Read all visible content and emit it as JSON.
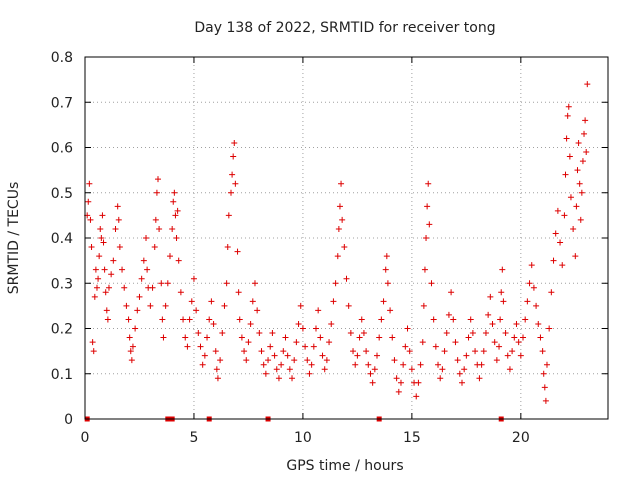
{
  "chart_data": {
    "type": "scatter",
    "title": "Day 138 of 2022, SRMTID for receiver tong",
    "xlabel": "GPS time / hours",
    "ylabel": "SRMTID / TECUs",
    "xlim": [
      0,
      24
    ],
    "ylim": [
      0,
      0.8
    ],
    "xticks": [
      0,
      5,
      10,
      15,
      20
    ],
    "yticks": [
      0,
      0.1,
      0.2,
      0.3,
      0.4,
      0.5,
      0.6,
      0.7,
      0.8
    ],
    "xtick_labels": [
      "0",
      "5",
      "10",
      "15",
      "20"
    ],
    "ytick_labels": [
      "0",
      "0.1",
      "0.2",
      "0.3",
      "0.4",
      "0.5",
      "0.6",
      "0.7",
      "0.8"
    ],
    "grid": true,
    "marker": "+",
    "color": "#dd0000",
    "series": [
      {
        "name": "SRMTID",
        "points": [
          [
            0.1,
            0.45
          ],
          [
            0.15,
            0.48
          ],
          [
            0.2,
            0.52
          ],
          [
            0.25,
            0.44
          ],
          [
            0.3,
            0.38
          ],
          [
            0.35,
            0.17
          ],
          [
            0.4,
            0.15
          ],
          [
            0.45,
            0.27
          ],
          [
            0.5,
            0.33
          ],
          [
            0.55,
            0.29
          ],
          [
            0.6,
            0.31
          ],
          [
            0.65,
            0.36
          ],
          [
            0.7,
            0.42
          ],
          [
            0.75,
            0.4
          ],
          [
            0.8,
            0.45
          ],
          [
            0.85,
            0.39
          ],
          [
            0.9,
            0.33
          ],
          [
            0.95,
            0.28
          ],
          [
            1.0,
            0.24
          ],
          [
            1.05,
            0.22
          ],
          [
            1.1,
            0.29
          ],
          [
            1.2,
            0.32
          ],
          [
            1.3,
            0.35
          ],
          [
            1.4,
            0.42
          ],
          [
            1.5,
            0.47
          ],
          [
            1.55,
            0.44
          ],
          [
            1.6,
            0.38
          ],
          [
            1.7,
            0.33
          ],
          [
            1.8,
            0.29
          ],
          [
            1.9,
            0.25
          ],
          [
            2.0,
            0.22
          ],
          [
            2.05,
            0.18
          ],
          [
            2.1,
            0.15
          ],
          [
            2.15,
            0.13
          ],
          [
            2.2,
            0.16
          ],
          [
            2.3,
            0.2
          ],
          [
            2.4,
            0.24
          ],
          [
            2.5,
            0.27
          ],
          [
            2.6,
            0.31
          ],
          [
            2.7,
            0.35
          ],
          [
            2.8,
            0.4
          ],
          [
            2.85,
            0.33
          ],
          [
            2.9,
            0.29
          ],
          [
            3.0,
            0.25
          ],
          [
            3.1,
            0.29
          ],
          [
            3.2,
            0.38
          ],
          [
            3.25,
            0.44
          ],
          [
            3.3,
            0.5
          ],
          [
            3.35,
            0.53
          ],
          [
            3.4,
            0.42
          ],
          [
            3.5,
            0.3
          ],
          [
            3.55,
            0.22
          ],
          [
            3.6,
            0.18
          ],
          [
            3.7,
            0.25
          ],
          [
            3.8,
            0.3
          ],
          [
            3.9,
            0.36
          ],
          [
            4.0,
            0.42
          ],
          [
            4.05,
            0.48
          ],
          [
            4.1,
            0.5
          ],
          [
            4.15,
            0.45
          ],
          [
            4.2,
            0.4
          ],
          [
            4.25,
            0.46
          ],
          [
            4.3,
            0.35
          ],
          [
            4.4,
            0.28
          ],
          [
            4.5,
            0.22
          ],
          [
            4.6,
            0.18
          ],
          [
            4.7,
            0.16
          ],
          [
            4.8,
            0.22
          ],
          [
            4.9,
            0.26
          ],
          [
            5.0,
            0.31
          ],
          [
            5.1,
            0.24
          ],
          [
            5.2,
            0.19
          ],
          [
            5.3,
            0.16
          ],
          [
            5.4,
            0.12
          ],
          [
            5.5,
            0.14
          ],
          [
            5.6,
            0.18
          ],
          [
            5.7,
            0.22
          ],
          [
            5.8,
            0.26
          ],
          [
            5.9,
            0.21
          ],
          [
            6.0,
            0.15
          ],
          [
            6.05,
            0.11
          ],
          [
            6.1,
            0.09
          ],
          [
            6.2,
            0.13
          ],
          [
            6.3,
            0.19
          ],
          [
            6.4,
            0.25
          ],
          [
            6.5,
            0.3
          ],
          [
            6.55,
            0.38
          ],
          [
            6.6,
            0.45
          ],
          [
            6.7,
            0.5
          ],
          [
            6.75,
            0.54
          ],
          [
            6.8,
            0.58
          ],
          [
            6.85,
            0.61
          ],
          [
            6.9,
            0.52
          ],
          [
            7.0,
            0.37
          ],
          [
            7.05,
            0.28
          ],
          [
            7.1,
            0.22
          ],
          [
            7.2,
            0.18
          ],
          [
            7.3,
            0.15
          ],
          [
            7.4,
            0.13
          ],
          [
            7.5,
            0.17
          ],
          [
            7.6,
            0.21
          ],
          [
            7.7,
            0.26
          ],
          [
            7.8,
            0.3
          ],
          [
            7.9,
            0.24
          ],
          [
            8.0,
            0.19
          ],
          [
            8.1,
            0.15
          ],
          [
            8.2,
            0.12
          ],
          [
            8.3,
            0.1
          ],
          [
            8.4,
            0.13
          ],
          [
            8.5,
            0.16
          ],
          [
            8.6,
            0.19
          ],
          [
            8.7,
            0.14
          ],
          [
            8.8,
            0.11
          ],
          [
            8.9,
            0.09
          ],
          [
            9.0,
            0.12
          ],
          [
            9.1,
            0.15
          ],
          [
            9.2,
            0.18
          ],
          [
            9.3,
            0.14
          ],
          [
            9.4,
            0.11
          ],
          [
            9.5,
            0.09
          ],
          [
            9.6,
            0.13
          ],
          [
            9.7,
            0.17
          ],
          [
            9.8,
            0.21
          ],
          [
            9.9,
            0.25
          ],
          [
            10.0,
            0.2
          ],
          [
            10.1,
            0.16
          ],
          [
            10.2,
            0.13
          ],
          [
            10.3,
            0.1
          ],
          [
            10.4,
            0.12
          ],
          [
            10.5,
            0.16
          ],
          [
            10.6,
            0.2
          ],
          [
            10.7,
            0.24
          ],
          [
            10.8,
            0.18
          ],
          [
            10.9,
            0.14
          ],
          [
            11.0,
            0.11
          ],
          [
            11.1,
            0.13
          ],
          [
            11.2,
            0.17
          ],
          [
            11.3,
            0.21
          ],
          [
            11.4,
            0.26
          ],
          [
            11.5,
            0.3
          ],
          [
            11.6,
            0.36
          ],
          [
            11.65,
            0.42
          ],
          [
            11.7,
            0.47
          ],
          [
            11.75,
            0.52
          ],
          [
            11.8,
            0.44
          ],
          [
            11.9,
            0.38
          ],
          [
            12.0,
            0.31
          ],
          [
            12.1,
            0.25
          ],
          [
            12.2,
            0.19
          ],
          [
            12.3,
            0.15
          ],
          [
            12.4,
            0.12
          ],
          [
            12.5,
            0.14
          ],
          [
            12.6,
            0.18
          ],
          [
            12.7,
            0.22
          ],
          [
            12.8,
            0.19
          ],
          [
            12.9,
            0.15
          ],
          [
            13.0,
            0.12
          ],
          [
            13.1,
            0.1
          ],
          [
            13.2,
            0.08
          ],
          [
            13.3,
            0.11
          ],
          [
            13.4,
            0.14
          ],
          [
            13.5,
            0.18
          ],
          [
            13.6,
            0.22
          ],
          [
            13.7,
            0.26
          ],
          [
            13.8,
            0.33
          ],
          [
            13.85,
            0.36
          ],
          [
            13.9,
            0.3
          ],
          [
            14.0,
            0.24
          ],
          [
            14.1,
            0.18
          ],
          [
            14.2,
            0.13
          ],
          [
            14.3,
            0.09
          ],
          [
            14.4,
            0.06
          ],
          [
            14.5,
            0.08
          ],
          [
            14.6,
            0.12
          ],
          [
            14.7,
            0.16
          ],
          [
            14.8,
            0.2
          ],
          [
            14.9,
            0.15
          ],
          [
            15.0,
            0.11
          ],
          [
            15.1,
            0.08
          ],
          [
            15.2,
            0.05
          ],
          [
            15.3,
            0.08
          ],
          [
            15.4,
            0.12
          ],
          [
            15.5,
            0.17
          ],
          [
            15.55,
            0.25
          ],
          [
            15.6,
            0.33
          ],
          [
            15.65,
            0.4
          ],
          [
            15.7,
            0.47
          ],
          [
            15.75,
            0.52
          ],
          [
            15.8,
            0.43
          ],
          [
            15.9,
            0.3
          ],
          [
            16.0,
            0.22
          ],
          [
            16.1,
            0.16
          ],
          [
            16.2,
            0.12
          ],
          [
            16.3,
            0.09
          ],
          [
            16.4,
            0.11
          ],
          [
            16.5,
            0.15
          ],
          [
            16.6,
            0.19
          ],
          [
            16.7,
            0.23
          ],
          [
            16.8,
            0.28
          ],
          [
            16.9,
            0.22
          ],
          [
            17.0,
            0.17
          ],
          [
            17.1,
            0.13
          ],
          [
            17.2,
            0.1
          ],
          [
            17.3,
            0.08
          ],
          [
            17.4,
            0.11
          ],
          [
            17.5,
            0.14
          ],
          [
            17.6,
            0.18
          ],
          [
            17.7,
            0.22
          ],
          [
            17.8,
            0.19
          ],
          [
            17.9,
            0.15
          ],
          [
            18.0,
            0.12
          ],
          [
            18.1,
            0.09
          ],
          [
            18.2,
            0.12
          ],
          [
            18.3,
            0.15
          ],
          [
            18.4,
            0.19
          ],
          [
            18.5,
            0.23
          ],
          [
            18.6,
            0.27
          ],
          [
            18.7,
            0.21
          ],
          [
            18.8,
            0.17
          ],
          [
            18.9,
            0.13
          ],
          [
            19.0,
            0.16
          ],
          [
            19.05,
            0.22
          ],
          [
            19.1,
            0.28
          ],
          [
            19.15,
            0.33
          ],
          [
            19.2,
            0.26
          ],
          [
            19.3,
            0.19
          ],
          [
            19.4,
            0.14
          ],
          [
            19.5,
            0.11
          ],
          [
            19.6,
            0.15
          ],
          [
            19.7,
            0.18
          ],
          [
            19.8,
            0.21
          ],
          [
            19.9,
            0.17
          ],
          [
            20.0,
            0.14
          ],
          [
            20.1,
            0.18
          ],
          [
            20.2,
            0.22
          ],
          [
            20.3,
            0.26
          ],
          [
            20.4,
            0.3
          ],
          [
            20.5,
            0.34
          ],
          [
            20.6,
            0.29
          ],
          [
            20.7,
            0.25
          ],
          [
            20.8,
            0.21
          ],
          [
            20.9,
            0.18
          ],
          [
            21.0,
            0.15
          ],
          [
            21.05,
            0.1
          ],
          [
            21.1,
            0.07
          ],
          [
            21.15,
            0.04
          ],
          [
            21.2,
            0.12
          ],
          [
            21.3,
            0.2
          ],
          [
            21.4,
            0.28
          ],
          [
            21.5,
            0.35
          ],
          [
            21.6,
            0.41
          ],
          [
            21.7,
            0.46
          ],
          [
            21.8,
            0.39
          ],
          [
            21.9,
            0.34
          ],
          [
            22.0,
            0.45
          ],
          [
            22.05,
            0.54
          ],
          [
            22.1,
            0.62
          ],
          [
            22.15,
            0.67
          ],
          [
            22.2,
            0.69
          ],
          [
            22.25,
            0.58
          ],
          [
            22.3,
            0.49
          ],
          [
            22.4,
            0.42
          ],
          [
            22.5,
            0.36
          ],
          [
            22.55,
            0.47
          ],
          [
            22.6,
            0.55
          ],
          [
            22.65,
            0.61
          ],
          [
            22.7,
            0.52
          ],
          [
            22.75,
            0.44
          ],
          [
            22.8,
            0.5
          ],
          [
            22.85,
            0.57
          ],
          [
            22.9,
            0.63
          ],
          [
            22.95,
            0.66
          ],
          [
            23.0,
            0.59
          ],
          [
            23.05,
            0.74
          ]
        ]
      }
    ],
    "x_markers": [
      0.1,
      3.8,
      4.0,
      5.7,
      8.4,
      13.5,
      19.1
    ]
  }
}
